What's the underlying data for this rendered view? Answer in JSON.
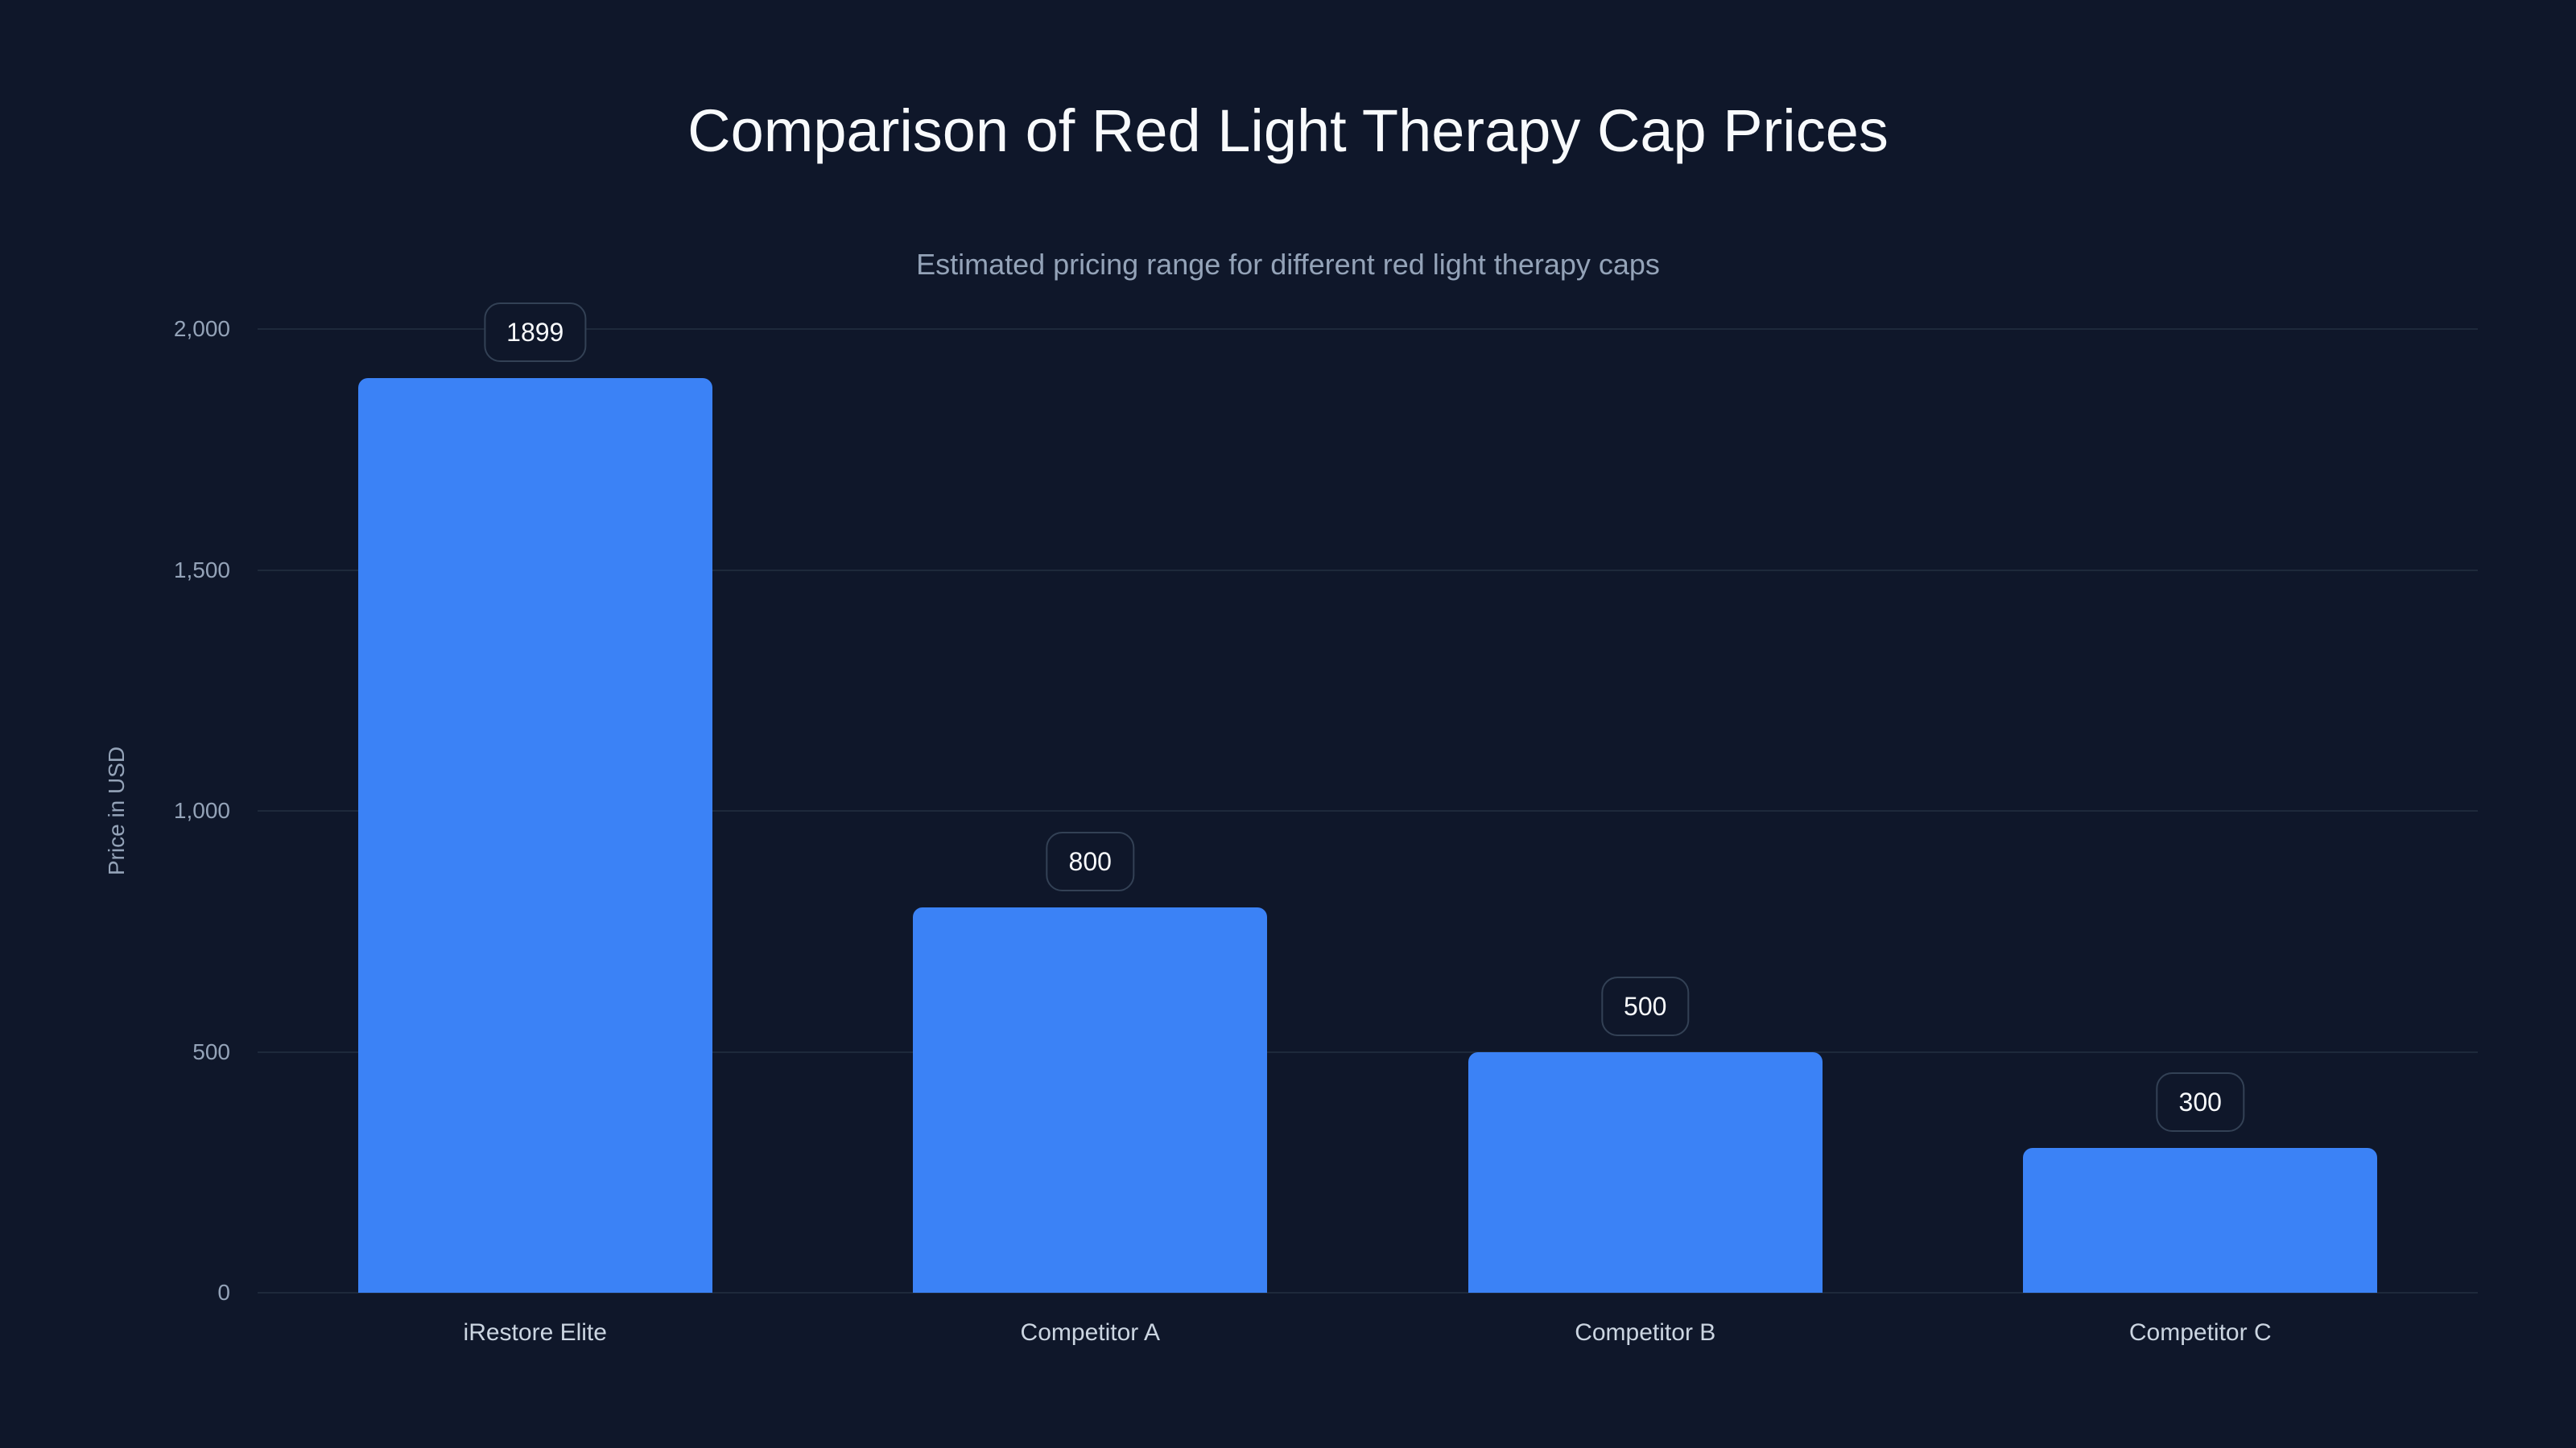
{
  "chart_data": {
    "type": "bar",
    "title": "Comparison of Red Light Therapy Cap Prices",
    "subtitle": "Estimated pricing range for different red light therapy caps",
    "xlabel": "",
    "ylabel": "Price in USD",
    "categories": [
      "iRestore Elite",
      "Competitor A",
      "Competitor B",
      "Competitor C"
    ],
    "values": [
      1899,
      800,
      500,
      300
    ],
    "data_labels": [
      "1899",
      "800",
      "500",
      "300"
    ],
    "ylim": [
      0,
      2000
    ],
    "yticks": [
      0,
      500,
      1000,
      1500,
      2000
    ],
    "ytick_labels": [
      "0",
      "500",
      "1,000",
      "1,500",
      "2,000"
    ],
    "grid": true,
    "legend": null,
    "bar_color": "#3b82f6"
  },
  "colors": {
    "background": "#0f172a",
    "bar": "#3b82f6",
    "grid": "#1e293b",
    "title": "#f8fafc",
    "muted": "#94a3b8"
  }
}
